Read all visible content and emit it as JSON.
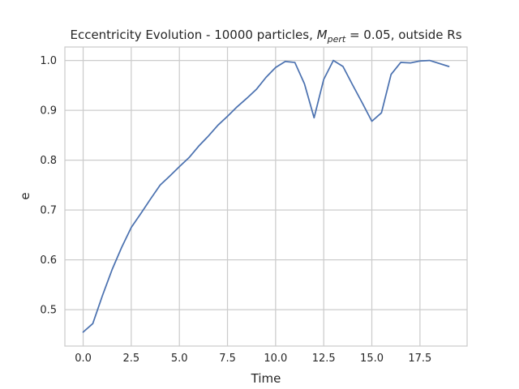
{
  "chart_data": {
    "type": "line",
    "title": {
      "before": "Eccentricity Evolution - 10000 particles, ",
      "math_symbol": "M",
      "math_subscript": "pert",
      "after": " = 0.05, outside Rs"
    },
    "xlabel": "Time",
    "ylabel": "e",
    "xlim": [
      -0.95,
      19.95
    ],
    "ylim": [
      0.427,
      1.027
    ],
    "xticks": [
      0.0,
      2.5,
      5.0,
      7.5,
      10.0,
      12.5,
      15.0,
      17.5
    ],
    "xtick_labels": [
      "0.0",
      "2.5",
      "5.0",
      "7.5",
      "10.0",
      "12.5",
      "15.0",
      "17.5"
    ],
    "yticks": [
      0.5,
      0.6,
      0.7,
      0.8,
      0.9,
      1.0
    ],
    "ytick_labels": [
      "0.5",
      "0.6",
      "0.7",
      "0.8",
      "0.9",
      "1.0"
    ],
    "grid": true,
    "series": [
      {
        "color": "#4c72b0",
        "x": [
          0,
          0.5,
          1,
          1.5,
          2,
          2.5,
          3,
          3.5,
          4,
          4.5,
          5,
          5.5,
          6,
          6.5,
          7,
          7.5,
          8,
          8.5,
          9,
          9.5,
          10,
          10.5,
          11,
          11.5,
          12,
          12.5,
          13,
          13.5,
          14,
          14.5,
          15,
          15.5,
          16,
          16.5,
          17,
          17.5,
          18,
          19
        ],
        "y": [
          0.455,
          0.472,
          0.528,
          0.58,
          0.625,
          0.665,
          0.693,
          0.722,
          0.75,
          0.768,
          0.787,
          0.805,
          0.828,
          0.848,
          0.87,
          0.888,
          0.907,
          0.924,
          0.942,
          0.966,
          0.986,
          0.998,
          0.996,
          0.953,
          0.885,
          0.962,
          1.0,
          0.988,
          0.951,
          0.915,
          0.878,
          0.895,
          0.972,
          0.996,
          0.995,
          0.999,
          1.0,
          0.988
        ]
      }
    ]
  }
}
